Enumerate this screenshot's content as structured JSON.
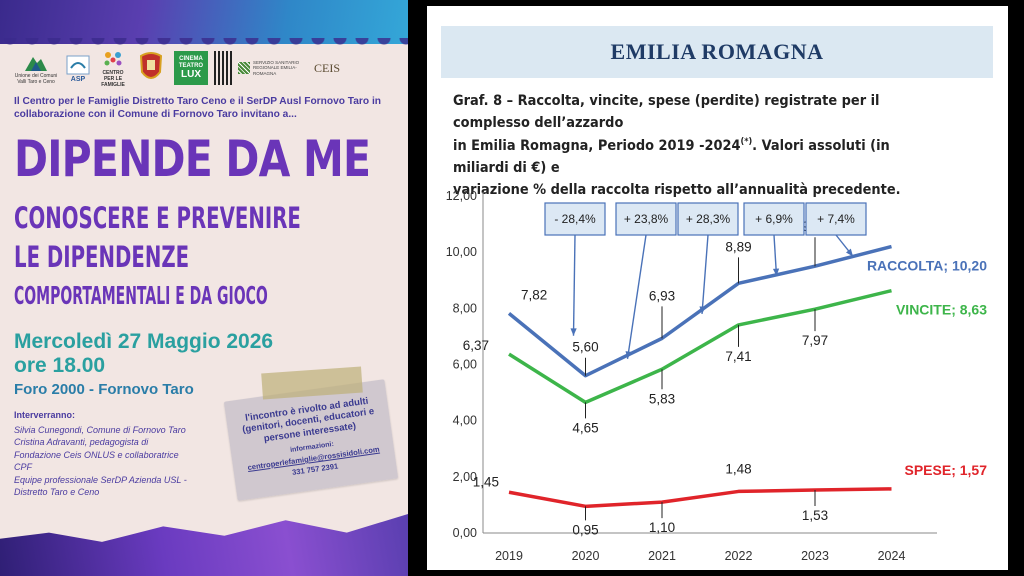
{
  "poster": {
    "logos": {
      "unione": "Unione dei Comuni Valli Taro e Ceno",
      "asp": "ASP",
      "centro": "CENTRO PER LE FAMIGLIE",
      "cinema_1": "CINEMA",
      "cinema_2": "TEATRO",
      "cinema_3": "LUX",
      "servizio": "SERVIZIO SANITARIO REGIONALE EMILIA-ROMAGNA",
      "ceis": "CEIS"
    },
    "intro": "Il Centro per le Famiglie Distretto Taro Ceno e il SerDP Ausl Fornovo Taro in collaborazione con il Comune di Fornovo Taro invitano a...",
    "title": "DIPENDE DA ME",
    "subtitle_1": "CONOSCERE E PREVENIRE",
    "subtitle_2": "LE DIPENDENZE",
    "subtitle_3": "COMPORTAMENTALI E DA GIOCO",
    "date": "Mercoledì 27 Maggio 2026",
    "time": "ore 18.00",
    "place": "Foro 2000 - Fornovo Taro",
    "speakers_heading": "Interverranno:",
    "speakers": [
      "Silvia Cunegondi, Comune di Fornovo Taro",
      "Cristina Adravanti, pedagogista di",
      "Fondazione Ceis ONLUS e collaboratrice",
      "CPF",
      "Equipe professionale SerDP Azienda USL -",
      "Distretto Taro e Ceno"
    ],
    "note": {
      "text": "l'incontro è rivolto ad adulti (genitori, docenti, educatori e persone interessate)",
      "info_heading": "informazioni:",
      "email": "centroperlefamiglie@rossisidoli.com",
      "phone": "331 757 2391"
    },
    "colors": {
      "purple": "#6a35b8",
      "teal": "#2aa0a0",
      "blue": "#2a7da8"
    }
  },
  "document": {
    "region": "EMILIA ROMAGNA",
    "caption_line_1": "Graf. 8 – Raccolta, vincite, spese (perdite) registrate per il complesso dell’azzardo",
    "caption_line_2_a": "in Emilia Romagna, Periodo 2019 -2024",
    "caption_sup": "(*)",
    "caption_line_2_b": ". Valori assoluti (in miliardi di €) e",
    "caption_line_3": "variazione % della raccolta rispetto all’annualità precedente."
  },
  "chart_data": {
    "type": "line",
    "categories": [
      "2019",
      "2020",
      "2021",
      "2022",
      "2023",
      "2024"
    ],
    "ylim": [
      0,
      12
    ],
    "yticks": [
      "0,00",
      "2,00",
      "4,00",
      "6,00",
      "8,00",
      "10,00",
      "12,00"
    ],
    "ytick_values": [
      0,
      2,
      4,
      6,
      8,
      10,
      12
    ],
    "grid": false,
    "series": [
      {
        "name": "RACCOLTA",
        "end_label": "RACCOLTA; 10,20",
        "color": "#4a72b8",
        "values": [
          7.82,
          5.6,
          6.93,
          8.89,
          9.5,
          10.2
        ],
        "labels": [
          "7,82",
          "5,60",
          "6,93",
          "8,89",
          "9,50",
          ""
        ]
      },
      {
        "name": "VINCITE",
        "end_label": "VINCITE; 8,63",
        "color": "#3db54a",
        "values": [
          6.37,
          4.65,
          5.83,
          7.41,
          7.97,
          8.63
        ],
        "labels": [
          "6,37",
          "4,65",
          "5,83",
          "7,41",
          "7,97",
          ""
        ]
      },
      {
        "name": "SPESE",
        "end_label": "SPESE; 1,57",
        "color": "#e0242a",
        "values": [
          1.45,
          0.95,
          1.1,
          1.48,
          1.53,
          1.57
        ],
        "labels": [
          "1,45",
          "0,95",
          "1,10",
          "1,48",
          "1,53",
          ""
        ]
      }
    ],
    "annotations": [
      "- 28,4%",
      "+ 23,8%",
      "+ 28,3%",
      "+ 6,9%",
      "+ 7,4%"
    ]
  }
}
